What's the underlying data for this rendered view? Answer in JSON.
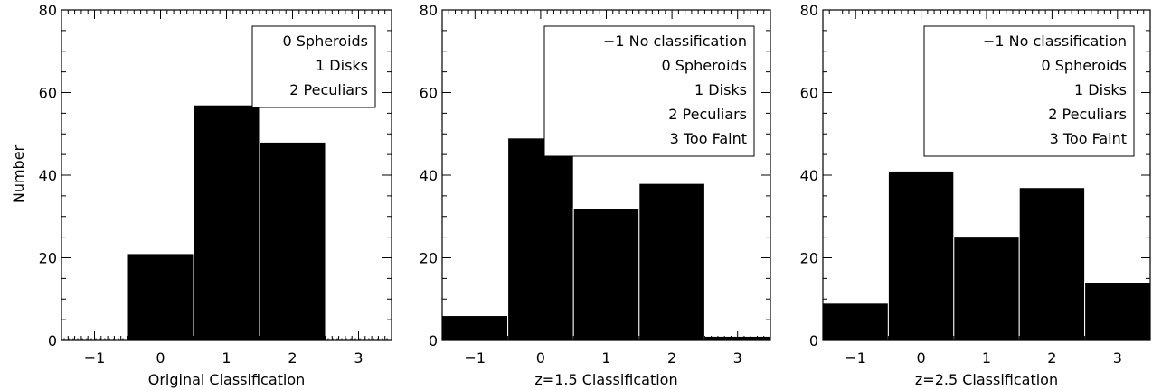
{
  "figure": {
    "ylabel": "Number"
  },
  "chart_data": [
    {
      "type": "bar",
      "xlabel": "Original Classification",
      "ylabel": "Number",
      "categories": [
        "-1",
        "0",
        "1",
        "2",
        "3"
      ],
      "x": [
        -1,
        0,
        1,
        2,
        3
      ],
      "values": [
        0,
        21,
        57,
        48,
        0
      ],
      "xlim": [
        -1.5,
        3.5
      ],
      "ylim": [
        0,
        80
      ],
      "xticks": [
        -1,
        0,
        1,
        2,
        3
      ],
      "yticks": [
        0,
        20,
        40,
        60,
        80
      ],
      "legend": [
        "0 Spheroids",
        "1 Disks",
        "2 Peculiars"
      ],
      "legend_placement": "top-right",
      "bar_color": "#000000",
      "grid": false
    },
    {
      "type": "bar",
      "xlabel": "z=1.5 Classification",
      "ylabel": "",
      "categories": [
        "-1",
        "0",
        "1",
        "2",
        "3"
      ],
      "x": [
        -1,
        0,
        1,
        2,
        3
      ],
      "values": [
        6,
        49,
        32,
        38,
        1
      ],
      "xlim": [
        -1.5,
        3.5
      ],
      "ylim": [
        0,
        80
      ],
      "xticks": [
        -1,
        0,
        1,
        2,
        3
      ],
      "yticks": [
        0,
        20,
        40,
        60,
        80
      ],
      "legend": [
        "−1 No classification",
        "0 Spheroids",
        "1 Disks",
        "2 Peculiars",
        "3 Too Faint"
      ],
      "legend_placement": "top-right",
      "bar_color": "#000000",
      "grid": false
    },
    {
      "type": "bar",
      "xlabel": "z=2.5 Classification",
      "ylabel": "",
      "categories": [
        "-1",
        "0",
        "1",
        "2",
        "3"
      ],
      "x": [
        -1,
        0,
        1,
        2,
        3
      ],
      "values": [
        9,
        41,
        25,
        37,
        14
      ],
      "xlim": [
        -1.5,
        3.5
      ],
      "ylim": [
        0,
        80
      ],
      "xticks": [
        -1,
        0,
        1,
        2,
        3
      ],
      "yticks": [
        0,
        20,
        40,
        60,
        80
      ],
      "legend": [
        "−1 No classification",
        "0 Spheroids",
        "1 Disks",
        "2 Peculiars",
        "3 Too Faint"
      ],
      "legend_placement": "top-right",
      "bar_color": "#000000",
      "grid": false
    }
  ]
}
